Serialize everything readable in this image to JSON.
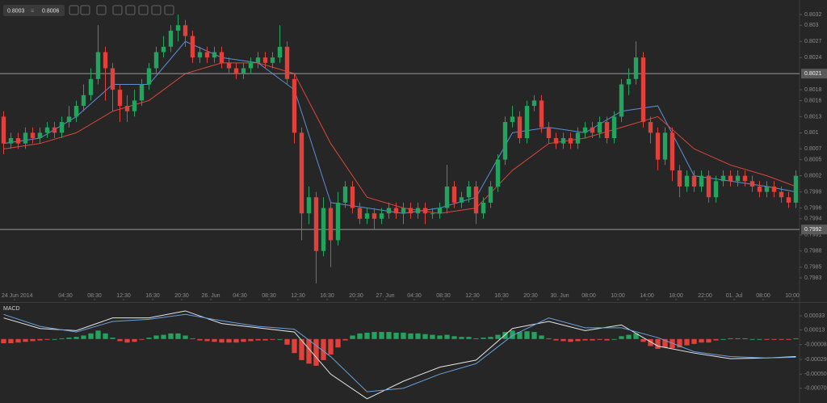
{
  "toolbar": {
    "bid": "0.8003",
    "ask": "0.8006"
  },
  "chart_data": [
    {
      "type": "candlestick",
      "xlim": [
        0,
        110
      ],
      "ylim": [
        0.79788,
        0.80347
      ],
      "up_color": "#22a35e",
      "down_color": "#e0413b",
      "yticks": [
        0.8032,
        0.803,
        0.8027,
        0.8024,
        0.8018,
        0.8016,
        0.8013,
        0.801,
        0.8007,
        0.8005,
        0.8002,
        0.7999,
        0.7996,
        0.7994,
        0.7991,
        0.7988,
        0.7985,
        0.7983
      ],
      "hlines": [
        0.8021,
        0.7992
      ],
      "xticks": [
        {
          "value": 2,
          "label": "24 Jun 2014"
        },
        {
          "value": 9,
          "label": "04:30"
        },
        {
          "value": 13,
          "label": "08:30"
        },
        {
          "value": 17,
          "label": "12:30"
        },
        {
          "value": 21,
          "label": "16:30"
        },
        {
          "value": 25,
          "label": "20:30"
        },
        {
          "value": 29,
          "label": "26. Jun"
        },
        {
          "value": 33,
          "label": "04:30"
        },
        {
          "value": 37,
          "label": "08:30"
        },
        {
          "value": 41,
          "label": "12:30"
        },
        {
          "value": 45,
          "label": "16:30"
        },
        {
          "value": 49,
          "label": "20:30"
        },
        {
          "value": 53,
          "label": "27. Jun"
        },
        {
          "value": 57,
          "label": "04:30"
        },
        {
          "value": 61,
          "label": "08:30"
        },
        {
          "value": 65,
          "label": "12:30"
        },
        {
          "value": 69,
          "label": "16:30"
        },
        {
          "value": 73,
          "label": "20:30"
        },
        {
          "value": 77,
          "label": "30. Jun"
        },
        {
          "value": 81,
          "label": "08:00"
        },
        {
          "value": 85,
          "label": "10:00"
        },
        {
          "value": 89,
          "label": "14:00"
        },
        {
          "value": 93,
          "label": "18:00"
        },
        {
          "value": 97,
          "label": "22:00"
        },
        {
          "value": 101,
          "label": "01. Jul"
        },
        {
          "value": 105,
          "label": "08:00"
        },
        {
          "value": 109,
          "label": "10:00"
        }
      ],
      "open": [
        0.8013,
        0.8008,
        0.8009,
        0.8008,
        0.801,
        0.8009,
        0.801,
        0.8011,
        0.801,
        0.8012,
        0.8013,
        0.8015,
        0.8017,
        0.802,
        0.8025,
        0.8022,
        0.8018,
        0.8015,
        0.8014,
        0.8016,
        0.8019,
        0.8022,
        0.8025,
        0.8026,
        0.8029,
        0.803,
        0.8028,
        0.8024,
        0.8025,
        0.8024,
        0.8025,
        0.8023,
        0.8022,
        0.8021,
        0.8022,
        0.8023,
        0.8024,
        0.8023,
        0.8024,
        0.8026,
        0.802,
        0.801,
        0.7995,
        0.7998,
        0.7988,
        0.7996,
        0.799,
        0.7997,
        0.8,
        0.7996,
        0.7994,
        0.7995,
        0.7994,
        0.7995,
        0.7996,
        0.7995,
        0.7996,
        0.7995,
        0.7996,
        0.7995,
        0.7995,
        0.7996,
        0.8,
        0.7997,
        0.7998,
        0.8,
        0.7995,
        0.7997,
        0.8,
        0.8005,
        0.8012,
        0.8013,
        0.8009,
        0.8015,
        0.8016,
        0.8011,
        0.8009,
        0.8008,
        0.8009,
        0.8008,
        0.801,
        0.8011,
        0.801,
        0.8012,
        0.8009,
        0.8013,
        0.8019,
        0.802,
        0.8024,
        0.8012,
        0.801,
        0.8005,
        0.801,
        0.8003,
        0.8,
        0.8002,
        0.8,
        0.8002,
        0.7998,
        0.8001,
        0.8002,
        0.8001,
        0.8002,
        0.8001,
        0.8,
        0.7999,
        0.8,
        0.7999,
        0.7998,
        0.7997
      ],
      "high": [
        0.8014,
        0.801,
        0.801,
        0.8011,
        0.8011,
        0.8011,
        0.8012,
        0.8012,
        0.8013,
        0.8015,
        0.8016,
        0.8019,
        0.8022,
        0.803,
        0.8026,
        0.8023,
        0.8019,
        0.8017,
        0.8018,
        0.802,
        0.8023,
        0.8026,
        0.8028,
        0.803,
        0.8032,
        0.8031,
        0.8029,
        0.8026,
        0.8026,
        0.8026,
        0.8026,
        0.8024,
        0.8023,
        0.8023,
        0.8024,
        0.8025,
        0.8025,
        0.8025,
        0.803,
        0.8027,
        0.8021,
        0.8011,
        0.8,
        0.7999,
        0.7998,
        0.7997,
        0.7999,
        0.8001,
        0.8001,
        0.7997,
        0.7996,
        0.7996,
        0.7996,
        0.7997,
        0.7997,
        0.7997,
        0.7997,
        0.7997,
        0.7997,
        0.7996,
        0.7997,
        0.8004,
        0.8001,
        0.7999,
        0.8001,
        0.8001,
        0.7998,
        0.8001,
        0.8006,
        0.8013,
        0.8015,
        0.8014,
        0.8016,
        0.8017,
        0.8017,
        0.8012,
        0.801,
        0.801,
        0.801,
        0.8011,
        0.8012,
        0.8012,
        0.8013,
        0.8013,
        0.8014,
        0.802,
        0.8022,
        0.8027,
        0.8025,
        0.8013,
        0.8011,
        0.8011,
        0.8011,
        0.8004,
        0.8003,
        0.8003,
        0.8003,
        0.8003,
        0.8002,
        0.8003,
        0.8003,
        0.8003,
        0.8003,
        0.8002,
        0.8001,
        0.8001,
        0.8001,
        0.8,
        0.7999,
        0.8003
      ],
      "low": [
        0.8006,
        0.8007,
        0.8007,
        0.8007,
        0.8008,
        0.8008,
        0.8009,
        0.8009,
        0.8009,
        0.8011,
        0.8012,
        0.8014,
        0.8016,
        0.8019,
        0.8016,
        0.8014,
        0.8012,
        0.8012,
        0.8013,
        0.8015,
        0.8018,
        0.8021,
        0.8024,
        0.8025,
        0.8027,
        0.8026,
        0.8023,
        0.8023,
        0.8023,
        0.8023,
        0.8022,
        0.8021,
        0.802,
        0.802,
        0.8021,
        0.8022,
        0.8022,
        0.8022,
        0.8023,
        0.8019,
        0.8008,
        0.799,
        0.7993,
        0.7982,
        0.7987,
        0.7985,
        0.7989,
        0.7996,
        0.7995,
        0.7993,
        0.7993,
        0.7992,
        0.7993,
        0.7994,
        0.7994,
        0.7993,
        0.7994,
        0.7994,
        0.7993,
        0.7994,
        0.7994,
        0.7995,
        0.7996,
        0.7996,
        0.7997,
        0.7993,
        0.7994,
        0.7996,
        0.7999,
        0.8004,
        0.8011,
        0.8008,
        0.8008,
        0.8014,
        0.801,
        0.8008,
        0.8007,
        0.8007,
        0.8007,
        0.8007,
        0.8009,
        0.8009,
        0.8009,
        0.8008,
        0.8008,
        0.8012,
        0.8017,
        0.8019,
        0.8011,
        0.8008,
        0.8003,
        0.8004,
        0.8001,
        0.7998,
        0.7999,
        0.7999,
        0.7999,
        0.7997,
        0.7997,
        0.8,
        0.8,
        0.8,
        0.8,
        0.7999,
        0.7998,
        0.7998,
        0.7998,
        0.7997,
        0.7996,
        0.7996
      ],
      "close": [
        0.8008,
        0.8009,
        0.8008,
        0.801,
        0.8009,
        0.801,
        0.8011,
        0.801,
        0.8012,
        0.8013,
        0.8015,
        0.8017,
        0.802,
        0.8025,
        0.8022,
        0.8018,
        0.8015,
        0.8014,
        0.8016,
        0.8019,
        0.8022,
        0.8025,
        0.8026,
        0.8029,
        0.803,
        0.8028,
        0.8024,
        0.8025,
        0.8024,
        0.8025,
        0.8023,
        0.8022,
        0.8021,
        0.8022,
        0.8023,
        0.8024,
        0.8023,
        0.8024,
        0.8026,
        0.802,
        0.801,
        0.7995,
        0.7998,
        0.7988,
        0.7996,
        0.799,
        0.7997,
        0.8,
        0.7996,
        0.7994,
        0.7995,
        0.7994,
        0.7995,
        0.7996,
        0.7995,
        0.7996,
        0.7995,
        0.7996,
        0.7995,
        0.7995,
        0.7996,
        0.8,
        0.7997,
        0.7998,
        0.8,
        0.7995,
        0.7997,
        0.8,
        0.8005,
        0.8012,
        0.8013,
        0.8009,
        0.8015,
        0.8016,
        0.8011,
        0.8009,
        0.8008,
        0.8009,
        0.8008,
        0.801,
        0.8011,
        0.801,
        0.8012,
        0.8009,
        0.8013,
        0.8019,
        0.802,
        0.8024,
        0.8012,
        0.801,
        0.8005,
        0.801,
        0.8003,
        0.8,
        0.8002,
        0.8,
        0.8002,
        0.7998,
        0.8001,
        0.8002,
        0.8001,
        0.8002,
        0.8001,
        0.8,
        0.7999,
        0.8,
        0.7999,
        0.7998,
        0.7997,
        0.8002
      ],
      "line_x": [
        0,
        5,
        10,
        15,
        20,
        25,
        30,
        35,
        40,
        45,
        50,
        55,
        60,
        65,
        70,
        75,
        80,
        85,
        90,
        95,
        100,
        105,
        109
      ],
      "lines": [
        {
          "color": "#5b8fd6",
          "values": [
            0.8008,
            0.8009,
            0.8013,
            0.8019,
            0.8019,
            0.8027,
            0.8024,
            0.8023,
            0.8018,
            0.7997,
            0.7996,
            0.7995,
            0.7996,
            0.7998,
            0.801,
            0.8011,
            0.801,
            0.8014,
            0.8015,
            0.8002,
            0.8001,
            0.8,
            0.7999
          ]
        },
        {
          "color": "#d9483b",
          "values": [
            0.8007,
            0.8008,
            0.801,
            0.8014,
            0.8016,
            0.8021,
            0.8023,
            0.8023,
            0.8021,
            0.8008,
            0.7998,
            0.7996,
            0.7995,
            0.7996,
            0.8003,
            0.8008,
            0.8009,
            0.8011,
            0.8013,
            0.8007,
            0.8004,
            0.8002,
            0.8
          ]
        }
      ]
    },
    {
      "type": "macd",
      "title": "MACD",
      "xlim": [
        0,
        110
      ],
      "ylim": [
        -0.00091,
        0.00048
      ],
      "up_color": "#22a35e",
      "down_color": "#e0413b",
      "yticks": [
        0.00033,
        0.00013,
        -8e-05,
        -0.00029,
        {
          "value": -0.0005,
          "label": "-0.00050"
        },
        {
          "value": -0.0007,
          "label": "-0.00070"
        }
      ],
      "histogram": [
        -6e-05,
        -6e-05,
        -5e-05,
        -4e-05,
        -3e-05,
        -2e-05,
        -1e-05,
        0,
        1e-05,
        2e-05,
        3e-05,
        5e-05,
        8e-05,
        0.00012,
        8e-05,
        2e-05,
        -3e-05,
        -5e-05,
        -4e-05,
        -1e-05,
        2e-05,
        5e-05,
        6e-05,
        8e-05,
        8e-05,
        5e-05,
        1e-05,
        -2e-05,
        -3e-05,
        -4e-05,
        -5e-05,
        -5e-05,
        -5e-05,
        -4e-05,
        -3e-05,
        -2e-05,
        -2e-05,
        -1e-05,
        0,
        -8e-05,
        -0.0002,
        -0.0003,
        -0.00035,
        -0.00038,
        -0.0003,
        -0.00022,
        -0.00012,
        -2e-05,
        5e-05,
        8e-05,
        9e-05,
        0.0001,
        0.0001,
        0.0001,
        9e-05,
        9e-05,
        8e-05,
        8e-05,
        7e-05,
        6e-05,
        5e-05,
        6e-05,
        4e-05,
        3e-05,
        3e-05,
        1e-05,
        2e-05,
        3e-05,
        6e-05,
        0.0001,
        0.00012,
        0.0001,
        0.00011,
        0.0001,
        5e-05,
        1e-05,
        -2e-05,
        -3e-05,
        -4e-05,
        -3e-05,
        -2e-05,
        -2e-05,
        -1e-05,
        -2e-05,
        0,
        4e-05,
        6e-05,
        8e-05,
        -4e-05,
        -0.0001,
        -0.00014,
        -0.00012,
        -0.00013,
        -0.00012,
        -9e-05,
        -7e-05,
        -5e-05,
        -5e-05,
        -2e-05,
        0,
        1e-05,
        1e-05,
        1e-05,
        0,
        0,
        -1e-05,
        -1e-05,
        -1e-05,
        -1e-05,
        1e-05
      ],
      "line_x": [
        0,
        5,
        10,
        15,
        20,
        25,
        30,
        35,
        40,
        45,
        50,
        55,
        60,
        65,
        70,
        75,
        80,
        85,
        90,
        95,
        100,
        105,
        109
      ],
      "lines": [
        {
          "color": "#e6e6e6",
          "values": [
            0.0003,
            0.00015,
            0.00012,
            0.0003,
            0.0003,
            0.0004,
            0.00022,
            0.00016,
            0.0001,
            -0.0005,
            -0.00085,
            -0.0006,
            -0.0004,
            -0.0003,
            0.00015,
            0.00025,
            0.00012,
            0.0002,
            -0.0001,
            -0.0002,
            -0.00028,
            -0.00027,
            -0.00025
          ]
        },
        {
          "color": "#6aa0d8",
          "values": [
            0.00035,
            0.00018,
            0.0001,
            0.00025,
            0.00028,
            0.00035,
            0.00026,
            0.00018,
            0.00014,
            -0.00025,
            -0.00075,
            -0.0007,
            -0.0005,
            -0.00035,
            5e-05,
            0.0003,
            0.00016,
            0.00016,
            2e-05,
            -0.00018,
            -0.00025,
            -0.00027,
            -0.00026
          ]
        }
      ]
    }
  ]
}
